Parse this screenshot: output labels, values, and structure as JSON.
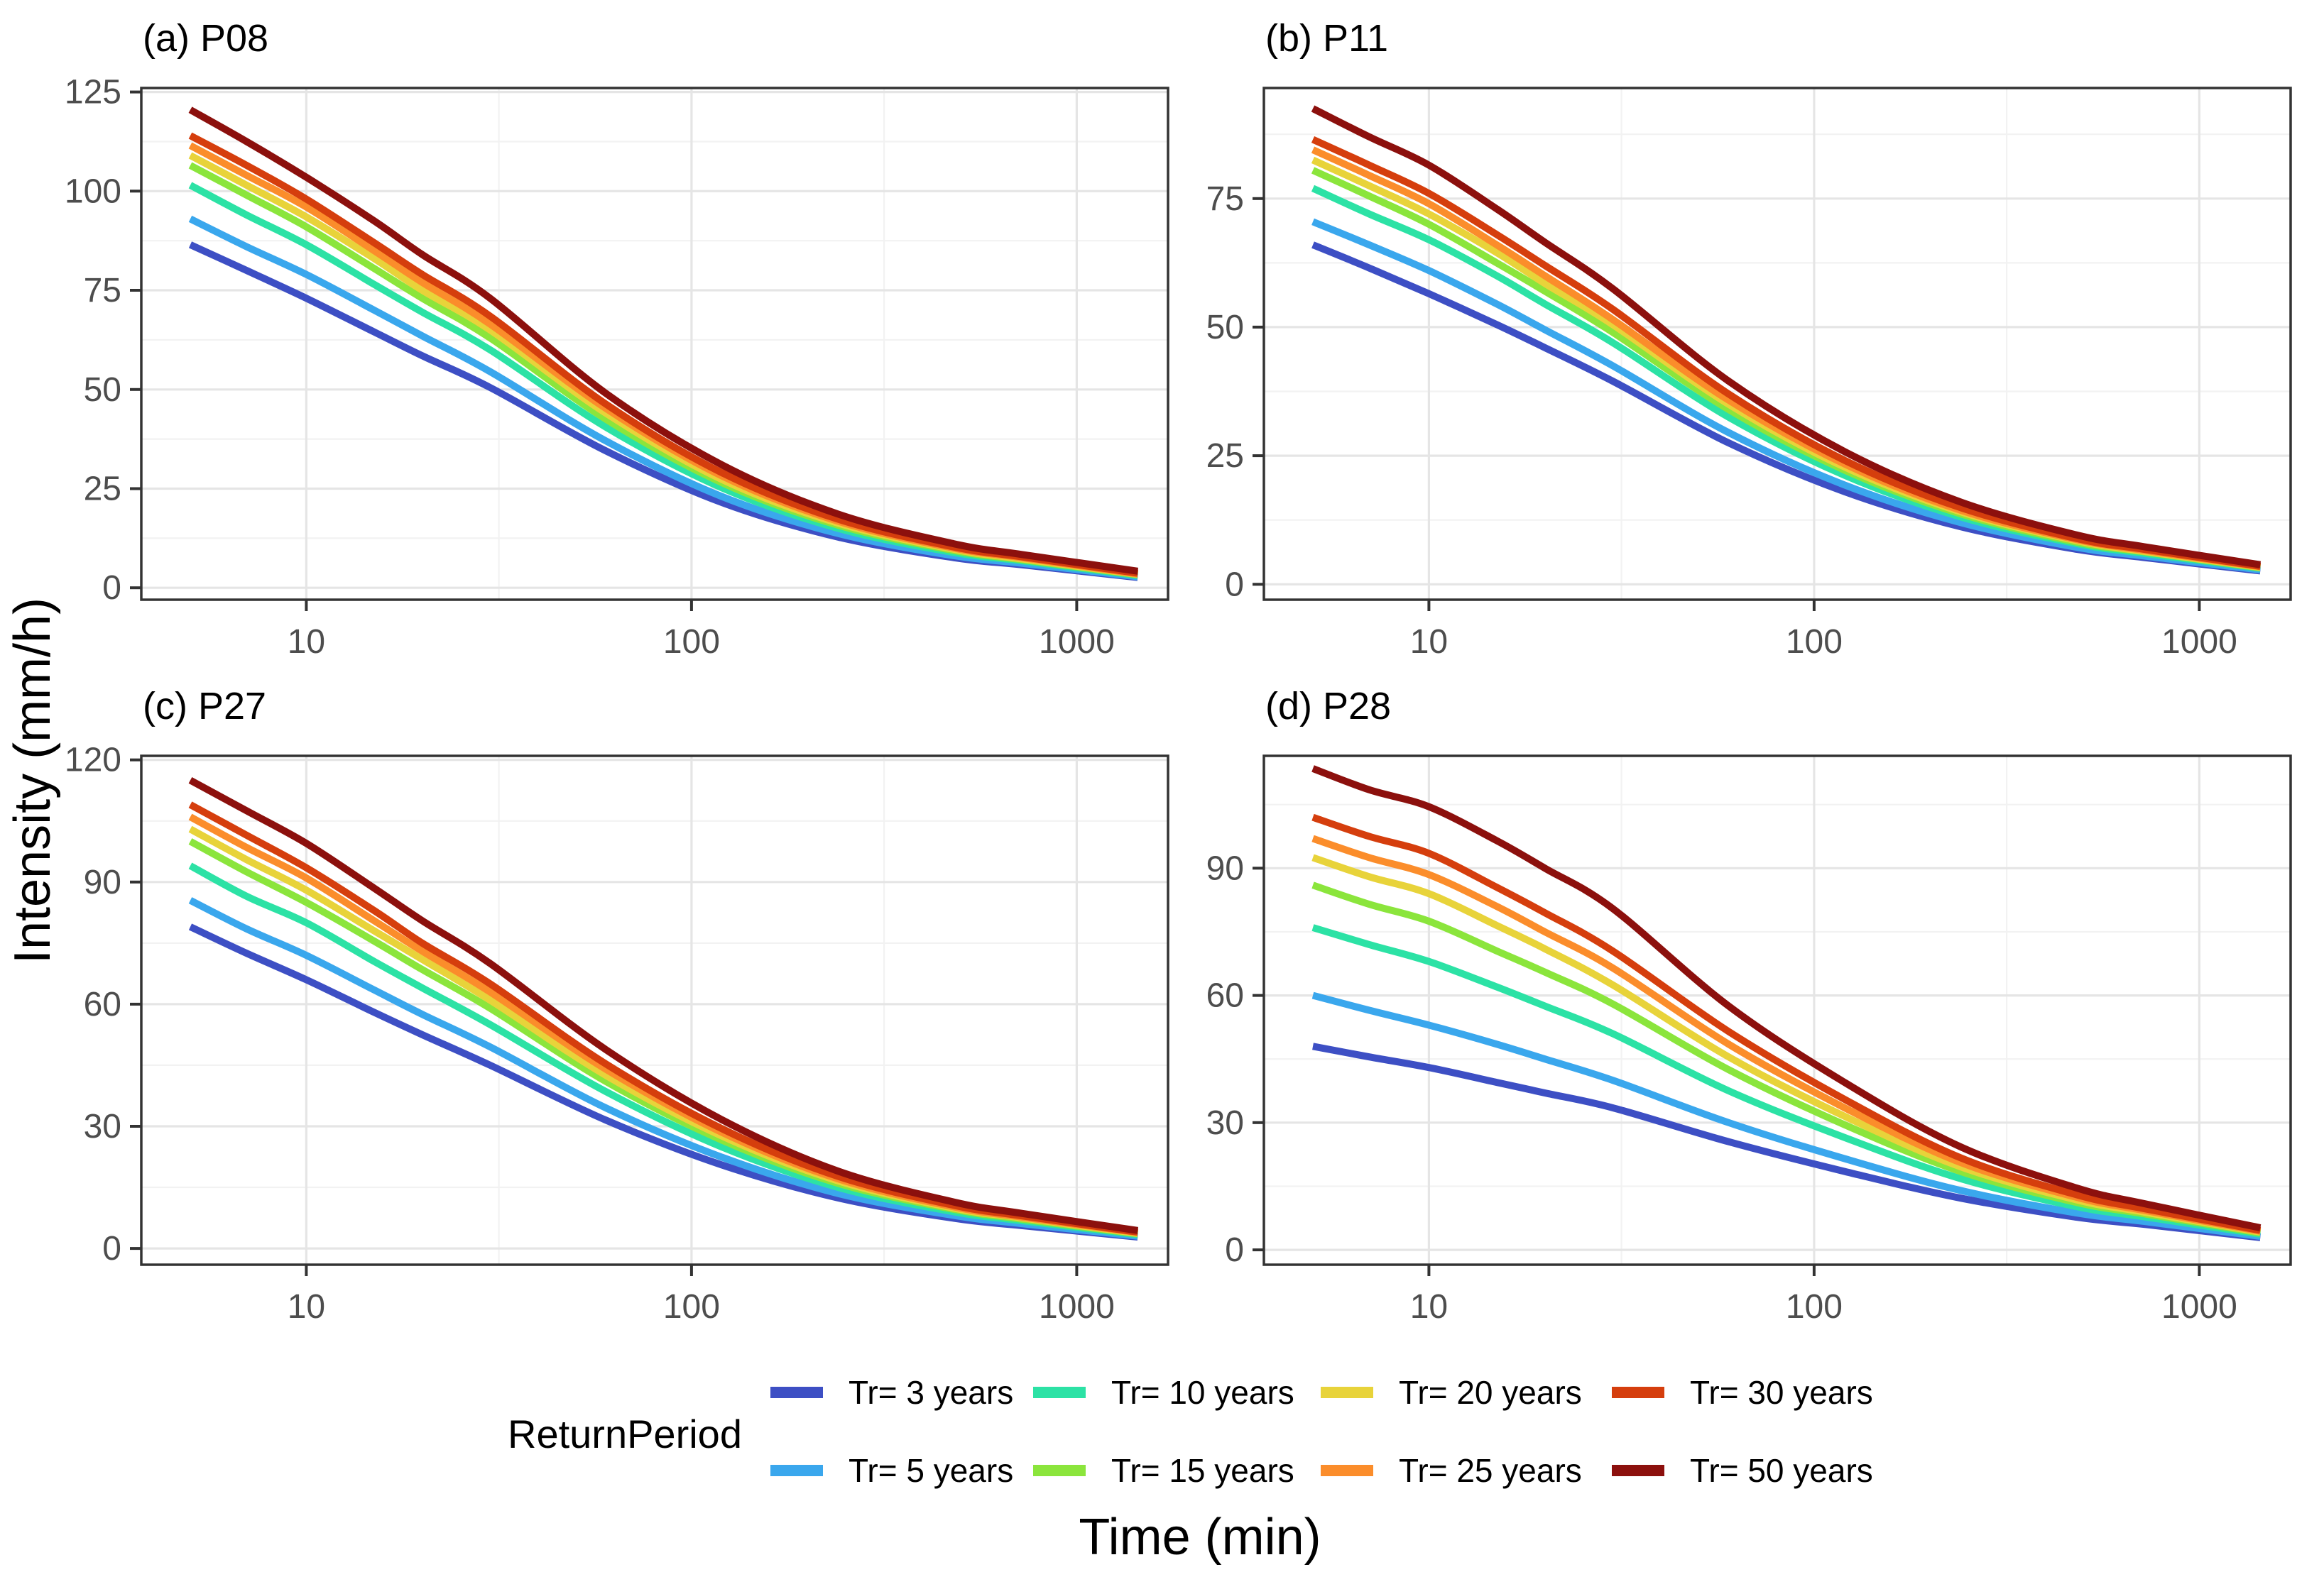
{
  "axes": {
    "x_label": "Time (min)",
    "y_label": "Intensity (mm/h)",
    "tick_color": "#4d4d4d",
    "border_color": "#333333",
    "grid_major_color": "#e5e5e5",
    "grid_minor_color": "#f2f2f2"
  },
  "legend": {
    "title": "ReturnPeriod",
    "entries": [
      {
        "label": "Tr= 3 years",
        "color": "#3D4FC4"
      },
      {
        "label": "Tr= 5 years",
        "color": "#3AA7ED"
      },
      {
        "label": "Tr= 10 years",
        "color": "#2CE2A5"
      },
      {
        "label": "Tr= 15 years",
        "color": "#8BE53C"
      },
      {
        "label": "Tr= 20 years",
        "color": "#E8D33A"
      },
      {
        "label": "Tr= 25 years",
        "color": "#FB8D2B"
      },
      {
        "label": "Tr= 30 years",
        "color": "#D53E0D"
      },
      {
        "label": "Tr= 50 years",
        "color": "#8C100D"
      }
    ]
  },
  "chart_data": [
    {
      "type": "line",
      "title": "(a) P08",
      "xscale": "log",
      "xlim": [
        3.73,
        1726
      ],
      "xticks": [
        10,
        100,
        1000
      ],
      "x_minor": [
        31.62,
        316.23
      ],
      "ylim": [
        -3,
        126
      ],
      "yticks": [
        0,
        25,
        50,
        75,
        100,
        125
      ],
      "y_minor": [
        12.5,
        37.5,
        62.5,
        87.5,
        112.5
      ],
      "x": [
        5,
        7,
        10,
        15,
        20,
        30,
        60,
        120,
        240,
        480,
        720,
        1440
      ],
      "series": [
        {
          "name": "Tr= 3 years",
          "color": "#3D4FC4",
          "values": [
            86.5,
            80,
            73,
            64.5,
            58.5,
            50.5,
            34.5,
            21.5,
            12.8,
            7.6,
            5.8,
            2.6
          ]
        },
        {
          "name": "Tr= 5 years",
          "color": "#3AA7ED",
          "values": [
            93,
            86,
            79,
            70,
            63.5,
            54.5,
            37,
            23,
            13.7,
            8.1,
            6.2,
            2.8
          ]
        },
        {
          "name": "Tr= 10 years",
          "color": "#2CE2A5",
          "values": [
            101.5,
            94,
            86.5,
            76.5,
            69.5,
            60,
            40.5,
            25.2,
            15,
            8.9,
            6.8,
            3.1
          ]
        },
        {
          "name": "Tr= 15 years",
          "color": "#8BE53C",
          "values": [
            106.5,
            99,
            91,
            80.5,
            73,
            63,
            42.5,
            26.5,
            15.8,
            9.4,
            7.1,
            3.3
          ]
        },
        {
          "name": "Tr= 20 years",
          "color": "#E8D33A",
          "values": [
            109,
            101.5,
            93.5,
            83,
            75,
            65,
            44,
            27.3,
            16.3,
            9.7,
            7.3,
            3.4
          ]
        },
        {
          "name": "Tr= 25 years",
          "color": "#FB8D2B",
          "values": [
            111.5,
            104,
            96,
            85,
            77,
            66.5,
            45.2,
            28.2,
            16.8,
            10,
            7.6,
            3.5
          ]
        },
        {
          "name": "Tr= 30 years",
          "color": "#D53E0D",
          "values": [
            114,
            106.5,
            98,
            87,
            79,
            68.5,
            46.3,
            29,
            17.3,
            10.3,
            7.8,
            3.7
          ]
        },
        {
          "name": "Tr= 50 years",
          "color": "#8C100D",
          "values": [
            120.5,
            112.5,
            103.5,
            92.5,
            84,
            73,
            49,
            31,
            18.6,
            11.1,
            8.4,
            4.2
          ]
        }
      ]
    },
    {
      "type": "line",
      "title": "(b) P11",
      "xscale": "log",
      "xlim": [
        3.73,
        1726
      ],
      "xticks": [
        10,
        100,
        1000
      ],
      "x_minor": [
        31.62,
        316.23
      ],
      "ylim": [
        -3,
        96.5
      ],
      "yticks": [
        0,
        25,
        50,
        75
      ],
      "y_minor": [
        12.5,
        37.5,
        62.5,
        87.5
      ],
      "x": [
        5,
        7,
        10,
        15,
        20,
        30,
        60,
        120,
        240,
        480,
        720,
        1440
      ],
      "series": [
        {
          "name": "Tr= 3 years",
          "color": "#3D4FC4",
          "values": [
            66,
            61.5,
            56.5,
            50.5,
            46,
            39.5,
            27.5,
            18,
            11.2,
            6.8,
            5.2,
            2.6
          ]
        },
        {
          "name": "Tr= 5 years",
          "color": "#3AA7ED",
          "values": [
            70.5,
            66,
            61,
            54.5,
            49.5,
            42.5,
            29.5,
            19.3,
            12,
            7.2,
            5.5,
            2.8
          ]
        },
        {
          "name": "Tr= 10 years",
          "color": "#2CE2A5",
          "values": [
            77,
            72,
            67,
            60,
            54.5,
            47,
            32.5,
            21.2,
            13.1,
            7.9,
            6,
            3.1
          ]
        },
        {
          "name": "Tr= 15 years",
          "color": "#8BE53C",
          "values": [
            80.5,
            75.5,
            70,
            62.5,
            57,
            49,
            34,
            22.2,
            13.7,
            8.2,
            6.3,
            3.2
          ]
        },
        {
          "name": "Tr= 20 years",
          "color": "#E8D33A",
          "values": [
            82.5,
            77.5,
            72,
            64.5,
            58.5,
            50.5,
            35,
            22.8,
            14.1,
            8.5,
            6.4,
            3.3
          ]
        },
        {
          "name": "Tr= 25 years",
          "color": "#FB8D2B",
          "values": [
            84.5,
            79.5,
            74,
            66,
            60,
            51.5,
            35.8,
            23.4,
            14.4,
            8.7,
            6.6,
            3.4
          ]
        },
        {
          "name": "Tr= 30 years",
          "color": "#D53E0D",
          "values": [
            86.5,
            81.5,
            76,
            68,
            62,
            53.5,
            37,
            24.1,
            14.9,
            8.9,
            6.8,
            3.5
          ]
        },
        {
          "name": "Tr= 50 years",
          "color": "#8C100D",
          "values": [
            92.5,
            87,
            81.5,
            73,
            66.5,
            57.5,
            39.5,
            25.8,
            16,
            9.6,
            7.3,
            3.8
          ]
        }
      ]
    },
    {
      "type": "line",
      "title": "(c) P27",
      "xscale": "log",
      "xlim": [
        3.73,
        1726
      ],
      "xticks": [
        10,
        100,
        1000
      ],
      "x_minor": [
        31.62,
        316.23
      ],
      "ylim": [
        -4,
        121
      ],
      "yticks": [
        0,
        30,
        60,
        90,
        120
      ],
      "y_minor": [
        15,
        45,
        75,
        105
      ],
      "x": [
        5,
        7,
        10,
        15,
        20,
        30,
        60,
        120,
        240,
        480,
        720,
        1440
      ],
      "series": [
        {
          "name": "Tr= 3 years",
          "color": "#3D4FC4",
          "values": [
            79,
            72.5,
            66,
            58,
            52.5,
            45,
            31.5,
            20.5,
            12.4,
            7.4,
            5.6,
            2.8
          ]
        },
        {
          "name": "Tr= 5 years",
          "color": "#3AA7ED",
          "values": [
            85.5,
            78.5,
            72,
            63.5,
            57.5,
            49.5,
            34.5,
            22.4,
            13.5,
            8.1,
            6.1,
            3.0
          ]
        },
        {
          "name": "Tr= 10 years",
          "color": "#2CE2A5",
          "values": [
            94,
            86.5,
            80,
            70.5,
            64,
            55,
            38.5,
            24.9,
            15,
            9,
            6.8,
            3.4
          ]
        },
        {
          "name": "Tr= 15 years",
          "color": "#8BE53C",
          "values": [
            100,
            92.5,
            85,
            75.5,
            68.5,
            59,
            41,
            26.6,
            16,
            9.6,
            7.2,
            3.6
          ]
        },
        {
          "name": "Tr= 20 years",
          "color": "#E8D33A",
          "values": [
            103,
            95.5,
            88,
            78,
            71,
            61,
            42.5,
            27.6,
            16.6,
            9.9,
            7.5,
            3.7
          ]
        },
        {
          "name": "Tr= 25 years",
          "color": "#FB8D2B",
          "values": [
            106,
            98.5,
            91,
            80.5,
            73,
            63,
            44,
            28.5,
            17.1,
            10.2,
            7.7,
            3.9
          ]
        },
        {
          "name": "Tr= 30 years",
          "color": "#D53E0D",
          "values": [
            109,
            101.5,
            93.5,
            83,
            75,
            65,
            45.3,
            29.4,
            17.7,
            10.6,
            8,
            4.0
          ]
        },
        {
          "name": "Tr= 50 years",
          "color": "#8C100D",
          "values": [
            115,
            107.5,
            99.5,
            88.5,
            80.5,
            70,
            48.8,
            31.6,
            19,
            11.4,
            8.6,
            4.4
          ]
        }
      ]
    },
    {
      "type": "line",
      "title": "(d) P28",
      "xscale": "log",
      "xlim": [
        3.73,
        1726
      ],
      "xticks": [
        10,
        100,
        1000
      ],
      "x_minor": [
        31.62,
        316.23
      ],
      "ylim": [
        -3.5,
        116.5
      ],
      "yticks": [
        0,
        30,
        60,
        90
      ],
      "y_minor": [
        15,
        45,
        75,
        105
      ],
      "x": [
        5,
        7,
        10,
        15,
        20,
        30,
        60,
        120,
        240,
        480,
        720,
        1440
      ],
      "series": [
        {
          "name": "Tr= 3 years",
          "color": "#3D4FC4",
          "values": [
            48,
            45.5,
            43,
            39.5,
            37,
            33.5,
            25.5,
            18.5,
            12.2,
            7.7,
            6,
            2.9
          ]
        },
        {
          "name": "Tr= 5 years",
          "color": "#3AA7ED",
          "values": [
            60,
            56.5,
            53,
            48.5,
            45,
            40,
            30,
            21.5,
            14,
            8.7,
            6.7,
            3.2
          ]
        },
        {
          "name": "Tr= 10 years",
          "color": "#2CE2A5",
          "values": [
            76,
            72,
            68,
            62,
            57.5,
            51,
            37.5,
            26.5,
            16.8,
            10.2,
            7.8,
            3.7
          ]
        },
        {
          "name": "Tr= 15 years",
          "color": "#8BE53C",
          "values": [
            86,
            81.5,
            77.5,
            70.5,
            65.5,
            58,
            42.5,
            29.5,
            18.5,
            11.2,
            8.5,
            4.0
          ]
        },
        {
          "name": "Tr= 20 years",
          "color": "#E8D33A",
          "values": [
            92.5,
            88,
            84,
            76.5,
            71,
            62.5,
            45.5,
            31.5,
            19.6,
            11.8,
            8.9,
            4.2
          ]
        },
        {
          "name": "Tr= 25 years",
          "color": "#FB8D2B",
          "values": [
            97,
            92.5,
            88.5,
            81,
            75,
            66.5,
            48.5,
            33.5,
            20.6,
            12.4,
            9.3,
            4.4
          ]
        },
        {
          "name": "Tr= 30 years",
          "color": "#D53E0D",
          "values": [
            102,
            97.5,
            93.5,
            85.5,
            79.5,
            70.5,
            51.5,
            35.5,
            21.7,
            13,
            9.7,
            4.6
          ]
        },
        {
          "name": "Tr= 50 years",
          "color": "#8C100D",
          "values": [
            113.5,
            108.5,
            104.5,
            96.5,
            90,
            80.5,
            57.5,
            39.5,
            24.3,
            14.6,
            10.9,
            5.2
          ]
        }
      ]
    }
  ]
}
